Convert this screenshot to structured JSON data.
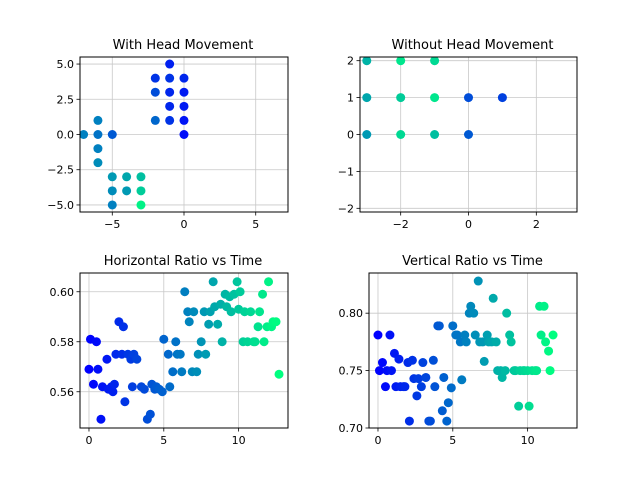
{
  "figure": {
    "background": "#ffffff",
    "colormap": [
      "#0000ff",
      "#00ff80"
    ]
  },
  "chart_data": [
    {
      "type": "scatter",
      "title": "With Head Movement",
      "xlim": [
        -7.25,
        7.25
      ],
      "ylim": [
        -5.5,
        5.5
      ],
      "xticks": [
        -5,
        0,
        5
      ],
      "xtick_labels": [
        "−5",
        "0",
        "5"
      ],
      "yticks": [
        -5,
        -2.5,
        0,
        2.5,
        5
      ],
      "ytick_labels": [
        "−5.0",
        "−2.5",
        "0.0",
        "2.5",
        "5.0"
      ],
      "grid": true,
      "points": [
        {
          "x": 0,
          "y": 0,
          "t": 0.05
        },
        {
          "x": 0,
          "y": 1,
          "t": 0.08
        },
        {
          "x": 0,
          "y": 2,
          "t": 0.1
        },
        {
          "x": 0,
          "y": 3,
          "t": 0.1
        },
        {
          "x": 0,
          "y": 4,
          "t": 0.15
        },
        {
          "x": -1,
          "y": 5,
          "t": 0.12
        },
        {
          "x": -1,
          "y": 4,
          "t": 0.2
        },
        {
          "x": -1,
          "y": 3,
          "t": 0.15
        },
        {
          "x": -1,
          "y": 2,
          "t": 0.15
        },
        {
          "x": -1,
          "y": 1,
          "t": 0.2
        },
        {
          "x": -2,
          "y": 4,
          "t": 0.2
        },
        {
          "x": -2,
          "y": 3,
          "t": 0.3
        },
        {
          "x": -2,
          "y": 1,
          "t": 0.4
        },
        {
          "x": -5,
          "y": 0,
          "t": 0.35
        },
        {
          "x": -6,
          "y": 1,
          "t": 0.5
        },
        {
          "x": -6,
          "y": 0,
          "t": 0.45
        },
        {
          "x": -7,
          "y": 0,
          "t": 0.5
        },
        {
          "x": -6,
          "y": -1,
          "t": 0.5
        },
        {
          "x": -6,
          "y": -2,
          "t": 0.55
        },
        {
          "x": -5,
          "y": -3,
          "t": 0.6
        },
        {
          "x": -5,
          "y": -4,
          "t": 0.55
        },
        {
          "x": -5,
          "y": -5,
          "t": 0.5
        },
        {
          "x": -4,
          "y": -3,
          "t": 0.65
        },
        {
          "x": -4,
          "y": -4,
          "t": 0.6
        },
        {
          "x": -3,
          "y": -3,
          "t": 0.75
        },
        {
          "x": -3,
          "y": -4,
          "t": 0.8
        },
        {
          "x": -3,
          "y": -5,
          "t": 0.95
        }
      ]
    },
    {
      "type": "scatter",
      "title": "Without Head Movement",
      "xlim": [
        -3.2,
        3.2
      ],
      "ylim": [
        -2.1,
        2.1
      ],
      "xticks": [
        -2,
        0,
        2
      ],
      "xtick_labels": [
        "−2",
        "0",
        "2"
      ],
      "yticks": [
        -2,
        -1,
        0,
        1,
        2
      ],
      "ytick_labels": [
        "−2",
        "−1",
        "0",
        "1",
        "2"
      ],
      "grid": true,
      "points": [
        {
          "x": -3,
          "y": 2,
          "t": 0.7
        },
        {
          "x": -2,
          "y": 2,
          "t": 0.9
        },
        {
          "x": -1,
          "y": 2,
          "t": 0.85
        },
        {
          "x": -3,
          "y": 1,
          "t": 0.65
        },
        {
          "x": -2,
          "y": 1,
          "t": 0.8
        },
        {
          "x": -1,
          "y": 1,
          "t": 0.9
        },
        {
          "x": 0,
          "y": 1,
          "t": 0.3
        },
        {
          "x": 1,
          "y": 1,
          "t": 0.25
        },
        {
          "x": -3,
          "y": 0,
          "t": 0.6
        },
        {
          "x": -2,
          "y": 0,
          "t": 0.85
        },
        {
          "x": -1,
          "y": 0,
          "t": 0.75
        },
        {
          "x": 0,
          "y": 0,
          "t": 0.35
        }
      ]
    },
    {
      "type": "scatter",
      "title": "Horizontal Ratio vs Time",
      "xlim": [
        -0.6,
        13.3
      ],
      "ylim": [
        0.5455,
        0.6075
      ],
      "xticks": [
        0,
        5,
        10
      ],
      "xtick_labels": [
        "0",
        "5",
        "10"
      ],
      "yticks": [
        0.56,
        0.58,
        0.6
      ],
      "ytick_labels": [
        "0.56",
        "0.58",
        "0.60"
      ],
      "grid": true,
      "points": [
        {
          "x": 0.0,
          "y": 0.569
        },
        {
          "x": 0.1,
          "y": 0.581
        },
        {
          "x": 0.3,
          "y": 0.563
        },
        {
          "x": 0.5,
          "y": 0.58
        },
        {
          "x": 0.6,
          "y": 0.569
        },
        {
          "x": 0.8,
          "y": 0.549
        },
        {
          "x": 0.9,
          "y": 0.562
        },
        {
          "x": 1.2,
          "y": 0.573
        },
        {
          "x": 1.3,
          "y": 0.561
        },
        {
          "x": 1.5,
          "y": 0.562
        },
        {
          "x": 1.6,
          "y": 0.56
        },
        {
          "x": 1.7,
          "y": 0.563
        },
        {
          "x": 1.8,
          "y": 0.575
        },
        {
          "x": 2.0,
          "y": 0.588
        },
        {
          "x": 2.2,
          "y": 0.575
        },
        {
          "x": 2.3,
          "y": 0.586
        },
        {
          "x": 2.4,
          "y": 0.556
        },
        {
          "x": 2.6,
          "y": 0.575
        },
        {
          "x": 2.8,
          "y": 0.573
        },
        {
          "x": 2.9,
          "y": 0.562
        },
        {
          "x": 3.0,
          "y": 0.575
        },
        {
          "x": 3.2,
          "y": 0.573
        },
        {
          "x": 3.5,
          "y": 0.562
        },
        {
          "x": 3.7,
          "y": 0.561
        },
        {
          "x": 3.9,
          "y": 0.549
        },
        {
          "x": 4.1,
          "y": 0.551
        },
        {
          "x": 4.2,
          "y": 0.563
        },
        {
          "x": 4.4,
          "y": 0.561
        },
        {
          "x": 4.5,
          "y": 0.562
        },
        {
          "x": 4.7,
          "y": 0.561
        },
        {
          "x": 4.9,
          "y": 0.56
        },
        {
          "x": 5.0,
          "y": 0.581
        },
        {
          "x": 5.3,
          "y": 0.575
        },
        {
          "x": 5.4,
          "y": 0.562
        },
        {
          "x": 5.6,
          "y": 0.568
        },
        {
          "x": 5.8,
          "y": 0.58
        },
        {
          "x": 5.9,
          "y": 0.575
        },
        {
          "x": 6.1,
          "y": 0.575
        },
        {
          "x": 6.2,
          "y": 0.568
        },
        {
          "x": 6.4,
          "y": 0.6
        },
        {
          "x": 6.6,
          "y": 0.592
        },
        {
          "x": 6.7,
          "y": 0.588
        },
        {
          "x": 6.9,
          "y": 0.568
        },
        {
          "x": 7.0,
          "y": 0.592
        },
        {
          "x": 7.2,
          "y": 0.568
        },
        {
          "x": 7.3,
          "y": 0.575
        },
        {
          "x": 7.5,
          "y": 0.58
        },
        {
          "x": 7.7,
          "y": 0.592
        },
        {
          "x": 7.8,
          "y": 0.575
        },
        {
          "x": 8.0,
          "y": 0.587
        },
        {
          "x": 8.1,
          "y": 0.592
        },
        {
          "x": 8.3,
          "y": 0.604
        },
        {
          "x": 8.4,
          "y": 0.594
        },
        {
          "x": 8.6,
          "y": 0.587
        },
        {
          "x": 8.8,
          "y": 0.595
        },
        {
          "x": 8.9,
          "y": 0.58
        },
        {
          "x": 9.1,
          "y": 0.599
        },
        {
          "x": 9.2,
          "y": 0.594
        },
        {
          "x": 9.4,
          "y": 0.598
        },
        {
          "x": 9.5,
          "y": 0.592
        },
        {
          "x": 9.7,
          "y": 0.599
        },
        {
          "x": 9.9,
          "y": 0.604
        },
        {
          "x": 10.0,
          "y": 0.593
        },
        {
          "x": 10.1,
          "y": 0.6
        },
        {
          "x": 10.3,
          "y": 0.58
        },
        {
          "x": 10.4,
          "y": 0.592
        },
        {
          "x": 10.6,
          "y": 0.58
        },
        {
          "x": 10.8,
          "y": 0.592
        },
        {
          "x": 11.0,
          "y": 0.58
        },
        {
          "x": 11.1,
          "y": 0.58
        },
        {
          "x": 11.3,
          "y": 0.586
        },
        {
          "x": 11.4,
          "y": 0.592
        },
        {
          "x": 11.6,
          "y": 0.599
        },
        {
          "x": 11.7,
          "y": 0.58
        },
        {
          "x": 11.9,
          "y": 0.586
        },
        {
          "x": 12.0,
          "y": 0.604
        },
        {
          "x": 12.2,
          "y": 0.586
        },
        {
          "x": 12.3,
          "y": 0.588
        },
        {
          "x": 12.5,
          "y": 0.588
        },
        {
          "x": 12.7,
          "y": 0.567
        }
      ]
    },
    {
      "type": "scatter",
      "title": "Vertical Ratio vs Time",
      "xlim": [
        -0.6,
        13.3
      ],
      "ylim": [
        0.7,
        0.835
      ],
      "xticks": [
        0,
        5,
        10
      ],
      "xtick_labels": [
        "0",
        "5",
        "10"
      ],
      "yticks": [
        0.7,
        0.75,
        0.8
      ],
      "ytick_labels": [
        "0.70",
        "0.75",
        "0.80"
      ],
      "grid": true,
      "points": [
        {
          "x": 0.0,
          "y": 0.781
        },
        {
          "x": 0.1,
          "y": 0.75
        },
        {
          "x": 0.3,
          "y": 0.757
        },
        {
          "x": 0.5,
          "y": 0.736
        },
        {
          "x": 0.6,
          "y": 0.75
        },
        {
          "x": 0.8,
          "y": 0.781
        },
        {
          "x": 0.9,
          "y": 0.75
        },
        {
          "x": 1.1,
          "y": 0.765
        },
        {
          "x": 1.2,
          "y": 0.736
        },
        {
          "x": 1.4,
          "y": 0.76
        },
        {
          "x": 1.5,
          "y": 0.736
        },
        {
          "x": 1.7,
          "y": 0.736
        },
        {
          "x": 1.8,
          "y": 0.736
        },
        {
          "x": 2.0,
          "y": 0.757
        },
        {
          "x": 2.1,
          "y": 0.706
        },
        {
          "x": 2.3,
          "y": 0.759
        },
        {
          "x": 2.4,
          "y": 0.743
        },
        {
          "x": 2.6,
          "y": 0.728
        },
        {
          "x": 2.7,
          "y": 0.743
        },
        {
          "x": 2.9,
          "y": 0.736
        },
        {
          "x": 3.0,
          "y": 0.757
        },
        {
          "x": 3.2,
          "y": 0.744
        },
        {
          "x": 3.4,
          "y": 0.706
        },
        {
          "x": 3.5,
          "y": 0.706
        },
        {
          "x": 3.7,
          "y": 0.759
        },
        {
          "x": 3.8,
          "y": 0.736
        },
        {
          "x": 4.0,
          "y": 0.789
        },
        {
          "x": 4.1,
          "y": 0.789
        },
        {
          "x": 4.3,
          "y": 0.715
        },
        {
          "x": 4.4,
          "y": 0.744
        },
        {
          "x": 4.6,
          "y": 0.706
        },
        {
          "x": 4.7,
          "y": 0.722
        },
        {
          "x": 4.9,
          "y": 0.735
        },
        {
          "x": 5.0,
          "y": 0.789
        },
        {
          "x": 5.2,
          "y": 0.781
        },
        {
          "x": 5.3,
          "y": 0.781
        },
        {
          "x": 5.5,
          "y": 0.775
        },
        {
          "x": 5.6,
          "y": 0.742
        },
        {
          "x": 5.8,
          "y": 0.781
        },
        {
          "x": 5.9,
          "y": 0.775
        },
        {
          "x": 6.1,
          "y": 0.8
        },
        {
          "x": 6.2,
          "y": 0.806
        },
        {
          "x": 6.4,
          "y": 0.8
        },
        {
          "x": 6.5,
          "y": 0.781
        },
        {
          "x": 6.7,
          "y": 0.828
        },
        {
          "x": 6.8,
          "y": 0.775
        },
        {
          "x": 7.0,
          "y": 0.775
        },
        {
          "x": 7.1,
          "y": 0.758
        },
        {
          "x": 7.3,
          "y": 0.781
        },
        {
          "x": 7.4,
          "y": 0.775
        },
        {
          "x": 7.6,
          "y": 0.775
        },
        {
          "x": 7.7,
          "y": 0.813
        },
        {
          "x": 7.9,
          "y": 0.775
        },
        {
          "x": 8.0,
          "y": 0.75
        },
        {
          "x": 8.2,
          "y": 0.75
        },
        {
          "x": 8.3,
          "y": 0.744
        },
        {
          "x": 8.5,
          "y": 0.75
        },
        {
          "x": 8.6,
          "y": 0.8
        },
        {
          "x": 8.8,
          "y": 0.781
        },
        {
          "x": 8.9,
          "y": 0.775
        },
        {
          "x": 9.1,
          "y": 0.75
        },
        {
          "x": 9.2,
          "y": 0.75
        },
        {
          "x": 9.4,
          "y": 0.719
        },
        {
          "x": 9.5,
          "y": 0.75
        },
        {
          "x": 9.7,
          "y": 0.75
        },
        {
          "x": 9.8,
          "y": 0.75
        },
        {
          "x": 10.0,
          "y": 0.75
        },
        {
          "x": 10.1,
          "y": 0.719
        },
        {
          "x": 10.3,
          "y": 0.75
        },
        {
          "x": 10.5,
          "y": 0.75
        },
        {
          "x": 10.6,
          "y": 0.75
        },
        {
          "x": 10.8,
          "y": 0.806
        },
        {
          "x": 10.9,
          "y": 0.781
        },
        {
          "x": 11.1,
          "y": 0.806
        },
        {
          "x": 11.2,
          "y": 0.775
        },
        {
          "x": 11.4,
          "y": 0.767
        },
        {
          "x": 11.5,
          "y": 0.75
        },
        {
          "x": 11.7,
          "y": 0.781
        }
      ]
    }
  ]
}
